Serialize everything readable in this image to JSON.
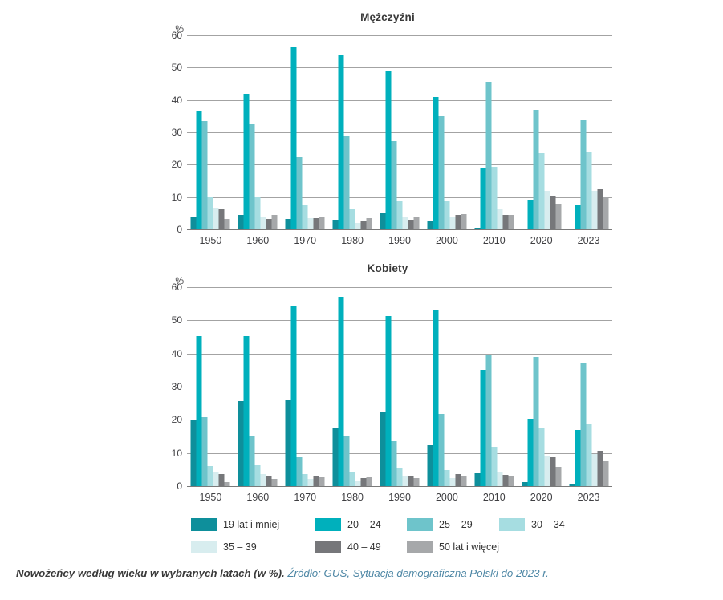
{
  "caption": {
    "title": "Nowożeńcy według wieku w wybranych latach (w %).",
    "source": "Źródło: GUS, Sytuacja demograficzna Polski do 2023 r."
  },
  "legend": {
    "items": [
      {
        "label": "19 lat i mniej",
        "color": "#0e8f9b"
      },
      {
        "label": "20 – 24",
        "color": "#00b0bc"
      },
      {
        "label": "25 – 29",
        "color": "#6ec4cb"
      },
      {
        "label": "30 – 34",
        "color": "#a6dde1"
      },
      {
        "label": "35 – 39",
        "color": "#d8edef"
      },
      {
        "label": "40 – 49",
        "color": "#76777a"
      },
      {
        "label": "50 lat i więcej",
        "color": "#a6a8aa"
      }
    ]
  },
  "chart_data": [
    {
      "type": "bar",
      "title": "Mężczyźni",
      "ylabel": "%",
      "xlabel": "",
      "ylim": [
        0,
        60
      ],
      "yticks": [
        0,
        10,
        20,
        30,
        40,
        50,
        60
      ],
      "grid": true,
      "legend_position": "bottom-shared",
      "categories": [
        "1950",
        "1960",
        "1970",
        "1980",
        "1990",
        "2000",
        "2010",
        "2020",
        "2023"
      ],
      "series": [
        {
          "name": "19 lat i mniej",
          "color": "#0e8f9b",
          "values": [
            3.8,
            4.4,
            3.3,
            2.9,
            5.0,
            2.6,
            0.6,
            0.3,
            0.2
          ]
        },
        {
          "name": "20 – 24",
          "color": "#00b0bc",
          "values": [
            36.5,
            41.8,
            56.5,
            53.7,
            49.0,
            41.0,
            19.2,
            9.3,
            7.6
          ]
        },
        {
          "name": "25 – 29",
          "color": "#6ec4cb",
          "values": [
            33.5,
            32.8,
            22.2,
            29.1,
            27.3,
            35.2,
            45.5,
            37.0,
            34.0
          ]
        },
        {
          "name": "30 – 34",
          "color": "#a6dde1",
          "values": [
            10.0,
            10.0,
            7.8,
            6.5,
            8.8,
            9.0,
            19.3,
            23.5,
            24.0
          ]
        },
        {
          "name": "35 – 39",
          "color": "#d8edef",
          "values": [
            6.7,
            3.8,
            3.5,
            2.0,
            4.0,
            3.8,
            6.5,
            11.9,
            11.9
          ]
        },
        {
          "name": "40 – 49",
          "color": "#76777a",
          "values": [
            6.2,
            3.2,
            3.4,
            2.8,
            3.0,
            4.4,
            4.5,
            10.3,
            12.3
          ]
        },
        {
          "name": "50 lat i więcej",
          "color": "#a6a8aa",
          "values": [
            3.2,
            4.4,
            3.9,
            3.5,
            3.6,
            4.7,
            4.4,
            7.9,
            10.0
          ]
        }
      ]
    },
    {
      "type": "bar",
      "title": "Kobiety",
      "ylabel": "%",
      "xlabel": "",
      "ylim": [
        0,
        60
      ],
      "yticks": [
        0,
        10,
        20,
        30,
        40,
        50,
        60
      ],
      "grid": true,
      "legend_position": "bottom-shared",
      "categories": [
        "1950",
        "1960",
        "1970",
        "1980",
        "1990",
        "2000",
        "2010",
        "2020",
        "2023"
      ],
      "series": [
        {
          "name": "19 lat i mniej",
          "color": "#0e8f9b",
          "values": [
            20.1,
            25.6,
            26.0,
            17.6,
            22.2,
            12.3,
            3.9,
            1.1,
            0.8
          ]
        },
        {
          "name": "20 – 24",
          "color": "#00b0bc",
          "values": [
            45.2,
            45.2,
            54.4,
            57.0,
            51.3,
            52.9,
            35.2,
            20.3,
            16.9
          ]
        },
        {
          "name": "25 – 29",
          "color": "#6ec4cb",
          "values": [
            20.8,
            15.0,
            8.8,
            15.0,
            13.5,
            21.7,
            39.4,
            39.0,
            37.2
          ]
        },
        {
          "name": "30 – 34",
          "color": "#a6dde1",
          "values": [
            6.0,
            6.2,
            3.6,
            4.2,
            5.3,
            4.9,
            11.8,
            17.6,
            18.6
          ]
        },
        {
          "name": "35 – 39",
          "color": "#d8edef",
          "values": [
            4.3,
            3.6,
            2.1,
            1.5,
            3.0,
            2.4,
            4.2,
            9.2,
            9.8
          ]
        },
        {
          "name": "40 – 49",
          "color": "#76777a",
          "values": [
            3.6,
            3.2,
            3.2,
            2.4,
            2.8,
            3.7,
            3.3,
            8.6,
            10.6
          ]
        },
        {
          "name": "50 lat i więcej",
          "color": "#a6a8aa",
          "values": [
            1.1,
            2.2,
            2.6,
            2.7,
            2.5,
            3.1,
            3.2,
            5.8,
            7.5
          ]
        }
      ]
    }
  ]
}
